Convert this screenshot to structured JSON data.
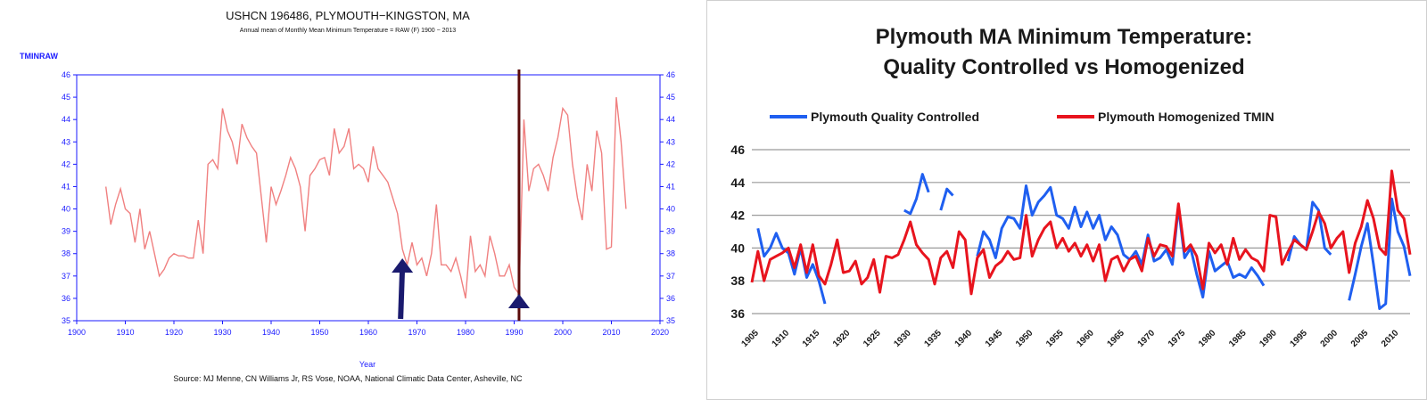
{
  "chart_data": [
    {
      "type": "line",
      "title": "USHCN 196486, PLYMOUTH−KINGSTON, MA",
      "subtitle": "Annual mean of Monthly Mean Minimum Temperature = RAW (F) 1900 − 2013",
      "ylabel": "TMINRAW",
      "xlabel": "Year",
      "source": "Source: MJ Menne, CN Williams Jr, RS Vose, NOAA, National Climatic Data Center, Asheville, NC",
      "xlim": [
        1900,
        2020
      ],
      "ylim": [
        35,
        46
      ],
      "xticks": [
        1900,
        1910,
        1920,
        1930,
        1940,
        1950,
        1960,
        1970,
        1980,
        1990,
        2000,
        2010,
        2020
      ],
      "yticks": [
        35,
        36,
        37,
        38,
        39,
        40,
        41,
        42,
        43,
        44,
        45,
        46
      ],
      "grid": false,
      "colors": {
        "series": "#f08080",
        "axis": "#1a1aff",
        "marker_line": "#5a0a0a",
        "arrow": "#1a1a6e"
      },
      "series": [
        {
          "name": "",
          "x": [
            1906,
            1907,
            1908,
            1909,
            1910,
            1911,
            1912,
            1913,
            1914,
            1915,
            1916,
            1917,
            1918,
            1919,
            1920,
            1921,
            1922,
            1923,
            1924,
            1925,
            1926,
            1927,
            1928,
            1929,
            1930,
            1931,
            1932,
            1933,
            1934,
            1935,
            1936,
            1937,
            1938,
            1939,
            1940,
            1941,
            1942,
            1943,
            1944,
            1945,
            1946,
            1947,
            1948,
            1949,
            1950,
            1951,
            1952,
            1953,
            1954,
            1955,
            1956,
            1957,
            1958,
            1959,
            1960,
            1961,
            1962,
            1963,
            1964,
            1965,
            1966,
            1967,
            1968,
            1969,
            1970,
            1971,
            1972,
            1973,
            1974,
            1975,
            1976,
            1977,
            1978,
            1979,
            1980,
            1981,
            1982,
            1983,
            1984,
            1985,
            1986,
            1987,
            1988,
            1989,
            1990,
            1991,
            1992,
            1993,
            1994,
            1995,
            1996,
            1997,
            1998,
            1999,
            2000,
            2001,
            2002,
            2003,
            2004,
            2005,
            2006,
            2007,
            2008,
            2009,
            2010,
            2011,
            2012,
            2013
          ],
          "values": [
            41.0,
            39.3,
            40.2,
            40.9,
            40.0,
            39.8,
            38.5,
            40.0,
            38.2,
            39.0,
            38.0,
            37.0,
            37.3,
            37.8,
            38.0,
            37.9,
            37.9,
            37.8,
            37.8,
            39.5,
            38.0,
            42.0,
            42.2,
            41.8,
            44.5,
            43.5,
            43.0,
            42.0,
            43.8,
            43.2,
            42.8,
            42.5,
            40.5,
            38.5,
            41.0,
            40.2,
            40.8,
            41.5,
            42.3,
            41.8,
            41.0,
            39.0,
            41.5,
            41.8,
            42.2,
            42.3,
            41.5,
            43.6,
            42.5,
            42.8,
            43.6,
            41.8,
            42.0,
            41.8,
            41.2,
            42.8,
            41.8,
            41.5,
            41.2,
            40.5,
            39.8,
            38.2,
            37.5,
            38.5,
            37.5,
            37.8,
            37.0,
            38.0,
            40.2,
            37.5,
            37.5,
            37.2,
            37.8,
            37.0,
            36.0,
            38.8,
            37.2,
            37.5,
            37.0,
            38.8,
            38.0,
            37.0,
            37.0,
            37.5,
            36.5,
            36.2,
            44.0,
            40.8,
            41.8,
            42.0,
            41.5,
            40.8,
            42.3,
            43.2,
            44.5,
            44.2,
            42.0,
            40.5,
            39.5,
            42.0,
            40.8,
            43.5,
            42.5,
            38.2,
            38.3,
            45.0,
            43.0,
            40.0
          ]
        }
      ],
      "annotations": [
        {
          "type": "vertical-line",
          "x": 1991
        },
        {
          "type": "arrow-up",
          "x": 1967
        },
        {
          "type": "arrow-up",
          "x": 1991
        }
      ]
    },
    {
      "type": "line",
      "title": "Plymouth MA Minimum Temperature: Quality Controlled vs Homogenized",
      "title_lines": [
        "Plymouth MA Minimum Temperature:",
        "Quality Controlled vs Homogenized"
      ],
      "ylim": [
        36,
        46
      ],
      "yticks": [
        36,
        38,
        40,
        42,
        44,
        46
      ],
      "xlim": [
        1905,
        2013
      ],
      "xticks": [
        1905,
        1910,
        1915,
        1920,
        1925,
        1930,
        1935,
        1940,
        1945,
        1950,
        1955,
        1960,
        1965,
        1970,
        1975,
        1980,
        1985,
        1990,
        1995,
        2000,
        2005,
        2010
      ],
      "grid": true,
      "legend": "top",
      "colors": {
        "Plymouth Quality Controlled": "#1f5ff0",
        "Plymouth Homogenized TMIN": "#e8141e",
        "grid": "#9a9a9a"
      },
      "series": [
        {
          "name": "Plymouth Quality Controlled",
          "x": [
            1905,
            1906,
            1907,
            1908,
            1909,
            1910,
            1911,
            1912,
            1913,
            1914,
            1915,
            1916,
            1917,
            1918,
            1919,
            1920,
            1921,
            1922,
            1923,
            1924,
            1925,
            1926,
            1927,
            1928,
            1929,
            1930,
            1931,
            1932,
            1933,
            1934,
            1935,
            1936,
            1937,
            1938,
            1939,
            1940,
            1941,
            1942,
            1943,
            1944,
            1945,
            1946,
            1947,
            1948,
            1949,
            1950,
            1951,
            1952,
            1953,
            1954,
            1955,
            1956,
            1957,
            1958,
            1959,
            1960,
            1961,
            1962,
            1963,
            1964,
            1965,
            1966,
            1967,
            1968,
            1969,
            1970,
            1971,
            1972,
            1973,
            1974,
            1975,
            1976,
            1977,
            1978,
            1979,
            1980,
            1981,
            1982,
            1983,
            1984,
            1985,
            1986,
            1987,
            1988,
            1989,
            1990,
            1991,
            1992,
            1993,
            1994,
            1995,
            1996,
            1997,
            1998,
            1999,
            2000,
            2001,
            2002,
            2003,
            2004,
            2005,
            2006,
            2007,
            2008,
            2009,
            2010,
            2011,
            2012,
            2013
          ],
          "values": [
            null,
            41.2,
            39.5,
            40.0,
            40.9,
            40.0,
            39.7,
            38.4,
            40.0,
            38.2,
            39.0,
            38.0,
            36.6,
            null,
            null,
            null,
            null,
            null,
            null,
            null,
            null,
            null,
            null,
            null,
            null,
            42.3,
            42.1,
            43.0,
            44.5,
            43.4,
            null,
            42.3,
            43.6,
            43.2,
            null,
            42.2,
            null,
            39.5,
            41.0,
            40.5,
            39.4,
            41.2,
            41.9,
            41.8,
            41.2,
            43.8,
            42.0,
            42.8,
            43.2,
            43.7,
            42.0,
            41.8,
            41.2,
            42.5,
            41.3,
            42.2,
            41.2,
            42.0,
            40.5,
            41.3,
            40.8,
            39.6,
            39.3,
            39.8,
            39.0,
            40.8,
            39.2,
            39.4,
            39.9,
            39.0,
            42.5,
            39.4,
            40.0,
            38.4,
            37.0,
            39.8,
            38.6,
            38.9,
            39.2,
            38.2,
            38.4,
            38.2,
            38.8,
            38.3,
            37.7,
            null,
            null,
            null,
            39.2,
            40.7,
            40.2,
            39.9,
            42.8,
            42.3,
            40.0,
            39.6,
            null,
            null,
            36.8,
            38.4,
            40.1,
            41.5,
            39.0,
            36.3,
            36.6,
            43.0,
            41.0,
            40.1,
            38.3
          ]
        },
        {
          "name": "Plymouth Homogenized TMIN",
          "x": [
            1905,
            1906,
            1907,
            1908,
            1909,
            1910,
            1911,
            1912,
            1913,
            1914,
            1915,
            1916,
            1917,
            1918,
            1919,
            1920,
            1921,
            1922,
            1923,
            1924,
            1925,
            1926,
            1927,
            1928,
            1929,
            1930,
            1931,
            1932,
            1933,
            1934,
            1935,
            1936,
            1937,
            1938,
            1939,
            1940,
            1941,
            1942,
            1943,
            1944,
            1945,
            1946,
            1947,
            1948,
            1949,
            1950,
            1951,
            1952,
            1953,
            1954,
            1955,
            1956,
            1957,
            1958,
            1959,
            1960,
            1961,
            1962,
            1963,
            1964,
            1965,
            1966,
            1967,
            1968,
            1969,
            1970,
            1971,
            1972,
            1973,
            1974,
            1975,
            1976,
            1977,
            1978,
            1979,
            1980,
            1981,
            1982,
            1983,
            1984,
            1985,
            1986,
            1987,
            1988,
            1989,
            1990,
            1991,
            1992,
            1993,
            1994,
            1995,
            1996,
            1997,
            1998,
            1999,
            2000,
            2001,
            2002,
            2003,
            2004,
            2005,
            2006,
            2007,
            2008,
            2009,
            2010,
            2011,
            2012,
            2013
          ],
          "values": [
            37.9,
            39.8,
            38.0,
            39.3,
            39.5,
            39.7,
            40.0,
            38.8,
            40.2,
            38.5,
            40.2,
            38.3,
            37.8,
            39.0,
            40.5,
            38.5,
            38.6,
            39.2,
            37.8,
            38.2,
            39.3,
            37.3,
            39.5,
            39.4,
            39.6,
            40.5,
            41.6,
            40.2,
            39.7,
            39.3,
            37.8,
            39.4,
            39.8,
            38.8,
            41.0,
            40.5,
            37.2,
            39.4,
            39.9,
            38.2,
            38.9,
            39.2,
            39.8,
            39.3,
            39.4,
            42.0,
            39.5,
            40.5,
            41.2,
            41.6,
            40.0,
            40.6,
            39.8,
            40.3,
            39.5,
            40.2,
            39.2,
            40.2,
            38.0,
            39.3,
            39.5,
            38.6,
            39.3,
            39.5,
            38.6,
            40.6,
            39.5,
            40.2,
            40.1,
            39.5,
            42.7,
            39.8,
            40.2,
            39.5,
            37.5,
            40.3,
            39.7,
            40.2,
            39.0,
            40.6,
            39.3,
            39.9,
            39.4,
            39.2,
            38.6,
            42.0,
            41.9,
            39.0,
            39.8,
            40.5,
            40.2,
            39.9,
            41.0,
            42.2,
            41.5,
            40.0,
            40.6,
            41.0,
            38.5,
            40.3,
            41.3,
            42.9,
            41.8,
            40.0,
            39.6,
            44.7,
            42.3,
            41.8,
            39.6
          ]
        }
      ]
    }
  ]
}
